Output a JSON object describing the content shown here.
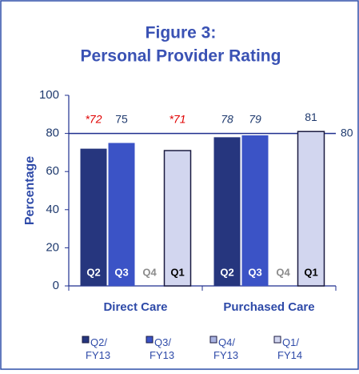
{
  "chart_data": {
    "type": "bar",
    "title": [
      "Figure 3:",
      "Personal Provider Rating"
    ],
    "y_label": "Percentage",
    "categories": [
      "Direct Care",
      "Purchased Care"
    ],
    "series": [
      {
        "name": "Q2/ FY13",
        "tag": "Q2",
        "tag_color": "#ffffff",
        "color": "#26367e",
        "values": [
          72,
          78
        ],
        "value_labels": [
          "*72",
          "78"
        ],
        "label_colors": [
          "#e00000",
          "#1f3a6e"
        ],
        "label_italic": [
          true,
          true
        ]
      },
      {
        "name": "Q3/ FY13",
        "tag": "Q3",
        "tag_color": "#ffffff",
        "color": "#3b53c6",
        "values": [
          75,
          79
        ],
        "value_labels": [
          "75",
          "79"
        ],
        "label_colors": [
          "#1f3a6e",
          "#1f3a6e"
        ],
        "label_italic": [
          false,
          true
        ]
      },
      {
        "name": "Q4/ FY13",
        "tag": "Q4",
        "tag_color": "#8c8c8c",
        "color": "#a9b3e0",
        "values": [
          null,
          null
        ],
        "value_labels": [
          null,
          null
        ],
        "label_colors": [
          null,
          null
        ],
        "label_italic": [
          null,
          null
        ]
      },
      {
        "name": "Q1/ FY14",
        "tag": "Q1",
        "tag_color": "#000000",
        "color": "#d2d6ef",
        "values": [
          71,
          81
        ],
        "value_labels": [
          "*71",
          "81"
        ],
        "label_colors": [
          "#e00000",
          "#1f3a6e"
        ],
        "label_italic": [
          true,
          false
        ]
      }
    ],
    "ylim": [
      0,
      100
    ],
    "yticks": [
      0,
      20,
      40,
      60,
      80,
      100
    ],
    "reference_line": {
      "value": 80,
      "color": "#1f2f8f"
    },
    "legend": "bottom"
  }
}
